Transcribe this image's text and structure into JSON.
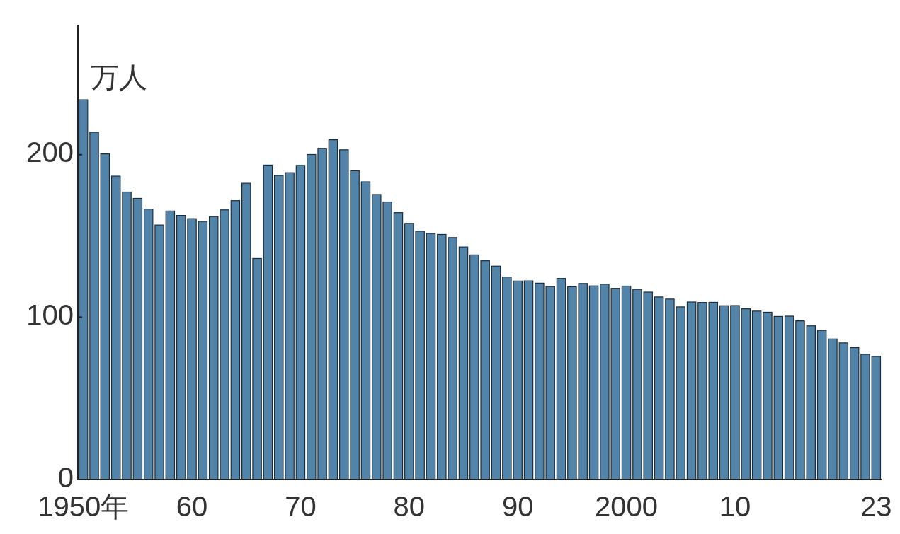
{
  "chart_data": {
    "type": "bar",
    "ylabel": "万人",
    "categories": [
      "1950年",
      null,
      null,
      null,
      null,
      null,
      null,
      null,
      null,
      null,
      "60",
      null,
      null,
      null,
      null,
      null,
      null,
      null,
      null,
      null,
      "70",
      null,
      null,
      null,
      null,
      null,
      null,
      null,
      null,
      null,
      "80",
      null,
      null,
      null,
      null,
      null,
      null,
      null,
      null,
      null,
      "90",
      null,
      null,
      null,
      null,
      null,
      null,
      null,
      null,
      null,
      "2000",
      null,
      null,
      null,
      null,
      null,
      null,
      null,
      null,
      null,
      "10",
      null,
      null,
      null,
      null,
      null,
      null,
      null,
      null,
      null,
      null,
      null,
      null,
      "23"
    ],
    "values": [
      233.8,
      213.8,
      200.5,
      186.8,
      177.0,
      173.1,
      166.5,
      156.7,
      165.3,
      162.6,
      160.6,
      158.9,
      161.9,
      166.0,
      171.7,
      182.4,
      136.1,
      193.6,
      187.2,
      188.9,
      193.4,
      200.1,
      203.9,
      209.2,
      203.0,
      190.1,
      183.3,
      175.5,
      170.9,
      164.3,
      157.7,
      152.9,
      151.5,
      150.9,
      149.0,
      143.2,
      138.3,
      134.7,
      131.4,
      124.7,
      122.2,
      122.3,
      120.9,
      118.8,
      123.8,
      118.7,
      120.7,
      119.2,
      120.3,
      117.7,
      119.1,
      117.1,
      115.4,
      112.4,
      111.1,
      106.3,
      109.3,
      109.0,
      109.1,
      107.0,
      107.1,
      105.1,
      103.7,
      103.0,
      100.4,
      100.6,
      97.7,
      94.6,
      91.8,
      86.5,
      84.1,
      81.2,
      77.1,
      75.8
    ],
    "color": "#5284aa",
    "ylim": [
      0,
      280
    ],
    "yticks": [
      0,
      100,
      200
    ],
    "grid": false
  }
}
